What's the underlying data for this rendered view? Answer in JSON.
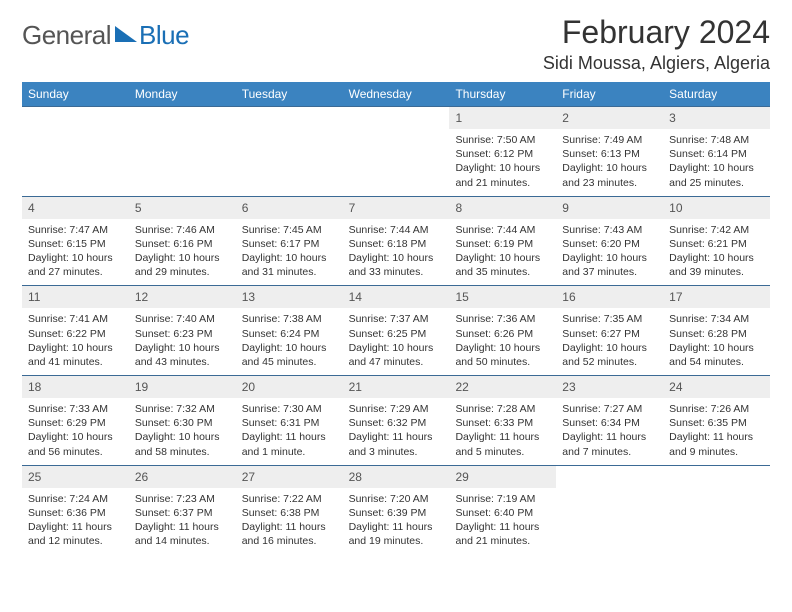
{
  "logo": {
    "text_gray": "General",
    "text_blue": "Blue"
  },
  "title": "February 2024",
  "location": "Sidi Moussa, Algiers, Algeria",
  "weekdays": [
    "Sunday",
    "Monday",
    "Tuesday",
    "Wednesday",
    "Thursday",
    "Friday",
    "Saturday"
  ],
  "colors": {
    "header_bg": "#3b83c0",
    "header_text": "#ffffff",
    "row_divider": "#3b6a95",
    "daybar_bg": "#eeeeee",
    "body_text": "#333333",
    "logo_blue": "#1a6fb5",
    "logo_gray": "#555555"
  },
  "weeks": [
    [
      {
        "day": "",
        "sunrise": "",
        "sunset": "",
        "daylight": ""
      },
      {
        "day": "",
        "sunrise": "",
        "sunset": "",
        "daylight": ""
      },
      {
        "day": "",
        "sunrise": "",
        "sunset": "",
        "daylight": ""
      },
      {
        "day": "",
        "sunrise": "",
        "sunset": "",
        "daylight": ""
      },
      {
        "day": "1",
        "sunrise": "Sunrise: 7:50 AM",
        "sunset": "Sunset: 6:12 PM",
        "daylight": "Daylight: 10 hours and 21 minutes."
      },
      {
        "day": "2",
        "sunrise": "Sunrise: 7:49 AM",
        "sunset": "Sunset: 6:13 PM",
        "daylight": "Daylight: 10 hours and 23 minutes."
      },
      {
        "day": "3",
        "sunrise": "Sunrise: 7:48 AM",
        "sunset": "Sunset: 6:14 PM",
        "daylight": "Daylight: 10 hours and 25 minutes."
      }
    ],
    [
      {
        "day": "4",
        "sunrise": "Sunrise: 7:47 AM",
        "sunset": "Sunset: 6:15 PM",
        "daylight": "Daylight: 10 hours and 27 minutes."
      },
      {
        "day": "5",
        "sunrise": "Sunrise: 7:46 AM",
        "sunset": "Sunset: 6:16 PM",
        "daylight": "Daylight: 10 hours and 29 minutes."
      },
      {
        "day": "6",
        "sunrise": "Sunrise: 7:45 AM",
        "sunset": "Sunset: 6:17 PM",
        "daylight": "Daylight: 10 hours and 31 minutes."
      },
      {
        "day": "7",
        "sunrise": "Sunrise: 7:44 AM",
        "sunset": "Sunset: 6:18 PM",
        "daylight": "Daylight: 10 hours and 33 minutes."
      },
      {
        "day": "8",
        "sunrise": "Sunrise: 7:44 AM",
        "sunset": "Sunset: 6:19 PM",
        "daylight": "Daylight: 10 hours and 35 minutes."
      },
      {
        "day": "9",
        "sunrise": "Sunrise: 7:43 AM",
        "sunset": "Sunset: 6:20 PM",
        "daylight": "Daylight: 10 hours and 37 minutes."
      },
      {
        "day": "10",
        "sunrise": "Sunrise: 7:42 AM",
        "sunset": "Sunset: 6:21 PM",
        "daylight": "Daylight: 10 hours and 39 minutes."
      }
    ],
    [
      {
        "day": "11",
        "sunrise": "Sunrise: 7:41 AM",
        "sunset": "Sunset: 6:22 PM",
        "daylight": "Daylight: 10 hours and 41 minutes."
      },
      {
        "day": "12",
        "sunrise": "Sunrise: 7:40 AM",
        "sunset": "Sunset: 6:23 PM",
        "daylight": "Daylight: 10 hours and 43 minutes."
      },
      {
        "day": "13",
        "sunrise": "Sunrise: 7:38 AM",
        "sunset": "Sunset: 6:24 PM",
        "daylight": "Daylight: 10 hours and 45 minutes."
      },
      {
        "day": "14",
        "sunrise": "Sunrise: 7:37 AM",
        "sunset": "Sunset: 6:25 PM",
        "daylight": "Daylight: 10 hours and 47 minutes."
      },
      {
        "day": "15",
        "sunrise": "Sunrise: 7:36 AM",
        "sunset": "Sunset: 6:26 PM",
        "daylight": "Daylight: 10 hours and 50 minutes."
      },
      {
        "day": "16",
        "sunrise": "Sunrise: 7:35 AM",
        "sunset": "Sunset: 6:27 PM",
        "daylight": "Daylight: 10 hours and 52 minutes."
      },
      {
        "day": "17",
        "sunrise": "Sunrise: 7:34 AM",
        "sunset": "Sunset: 6:28 PM",
        "daylight": "Daylight: 10 hours and 54 minutes."
      }
    ],
    [
      {
        "day": "18",
        "sunrise": "Sunrise: 7:33 AM",
        "sunset": "Sunset: 6:29 PM",
        "daylight": "Daylight: 10 hours and 56 minutes."
      },
      {
        "day": "19",
        "sunrise": "Sunrise: 7:32 AM",
        "sunset": "Sunset: 6:30 PM",
        "daylight": "Daylight: 10 hours and 58 minutes."
      },
      {
        "day": "20",
        "sunrise": "Sunrise: 7:30 AM",
        "sunset": "Sunset: 6:31 PM",
        "daylight": "Daylight: 11 hours and 1 minute."
      },
      {
        "day": "21",
        "sunrise": "Sunrise: 7:29 AM",
        "sunset": "Sunset: 6:32 PM",
        "daylight": "Daylight: 11 hours and 3 minutes."
      },
      {
        "day": "22",
        "sunrise": "Sunrise: 7:28 AM",
        "sunset": "Sunset: 6:33 PM",
        "daylight": "Daylight: 11 hours and 5 minutes."
      },
      {
        "day": "23",
        "sunrise": "Sunrise: 7:27 AM",
        "sunset": "Sunset: 6:34 PM",
        "daylight": "Daylight: 11 hours and 7 minutes."
      },
      {
        "day": "24",
        "sunrise": "Sunrise: 7:26 AM",
        "sunset": "Sunset: 6:35 PM",
        "daylight": "Daylight: 11 hours and 9 minutes."
      }
    ],
    [
      {
        "day": "25",
        "sunrise": "Sunrise: 7:24 AM",
        "sunset": "Sunset: 6:36 PM",
        "daylight": "Daylight: 11 hours and 12 minutes."
      },
      {
        "day": "26",
        "sunrise": "Sunrise: 7:23 AM",
        "sunset": "Sunset: 6:37 PM",
        "daylight": "Daylight: 11 hours and 14 minutes."
      },
      {
        "day": "27",
        "sunrise": "Sunrise: 7:22 AM",
        "sunset": "Sunset: 6:38 PM",
        "daylight": "Daylight: 11 hours and 16 minutes."
      },
      {
        "day": "28",
        "sunrise": "Sunrise: 7:20 AM",
        "sunset": "Sunset: 6:39 PM",
        "daylight": "Daylight: 11 hours and 19 minutes."
      },
      {
        "day": "29",
        "sunrise": "Sunrise: 7:19 AM",
        "sunset": "Sunset: 6:40 PM",
        "daylight": "Daylight: 11 hours and 21 minutes."
      },
      {
        "day": "",
        "sunrise": "",
        "sunset": "",
        "daylight": ""
      },
      {
        "day": "",
        "sunrise": "",
        "sunset": "",
        "daylight": ""
      }
    ]
  ]
}
